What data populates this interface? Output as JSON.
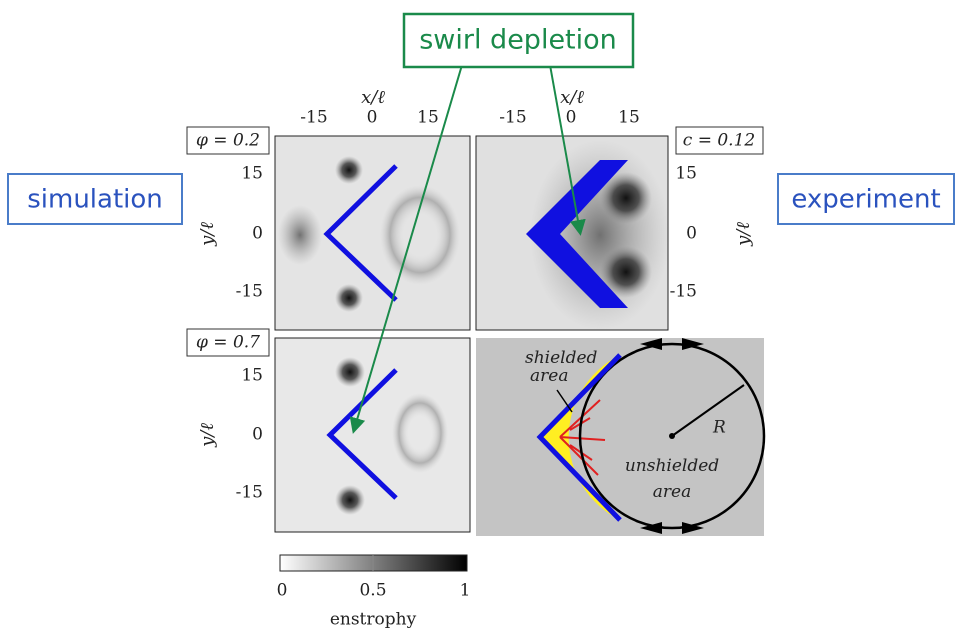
{
  "callout": "swirl depletion",
  "left_label": "simulation",
  "right_label": "experiment",
  "panels": [
    {
      "tag": "φ = 0.2",
      "x_label": "x/ℓ",
      "x_ticks": [
        "-15",
        "0",
        "15"
      ],
      "y_label": "y/ℓ",
      "y_ticks": [
        "15",
        "0",
        "-15"
      ]
    },
    {
      "tag": "c = 0.12",
      "x_label": "x/ℓ",
      "x_ticks": [
        "-15",
        "0",
        "15"
      ],
      "y_label": "y/ℓ",
      "y_ticks": [
        "15",
        "0",
        "-15"
      ]
    },
    {
      "tag": "φ = 0.7",
      "y_label": "y/ℓ",
      "y_ticks": [
        "15",
        "0",
        "-15"
      ]
    }
  ],
  "diagram": {
    "shielded": "shielded area",
    "radius": "R",
    "unshielded": "unshielded area"
  },
  "colorbar": {
    "ticks": [
      "0",
      "0.5",
      "1"
    ],
    "label": "enstrophy"
  }
}
